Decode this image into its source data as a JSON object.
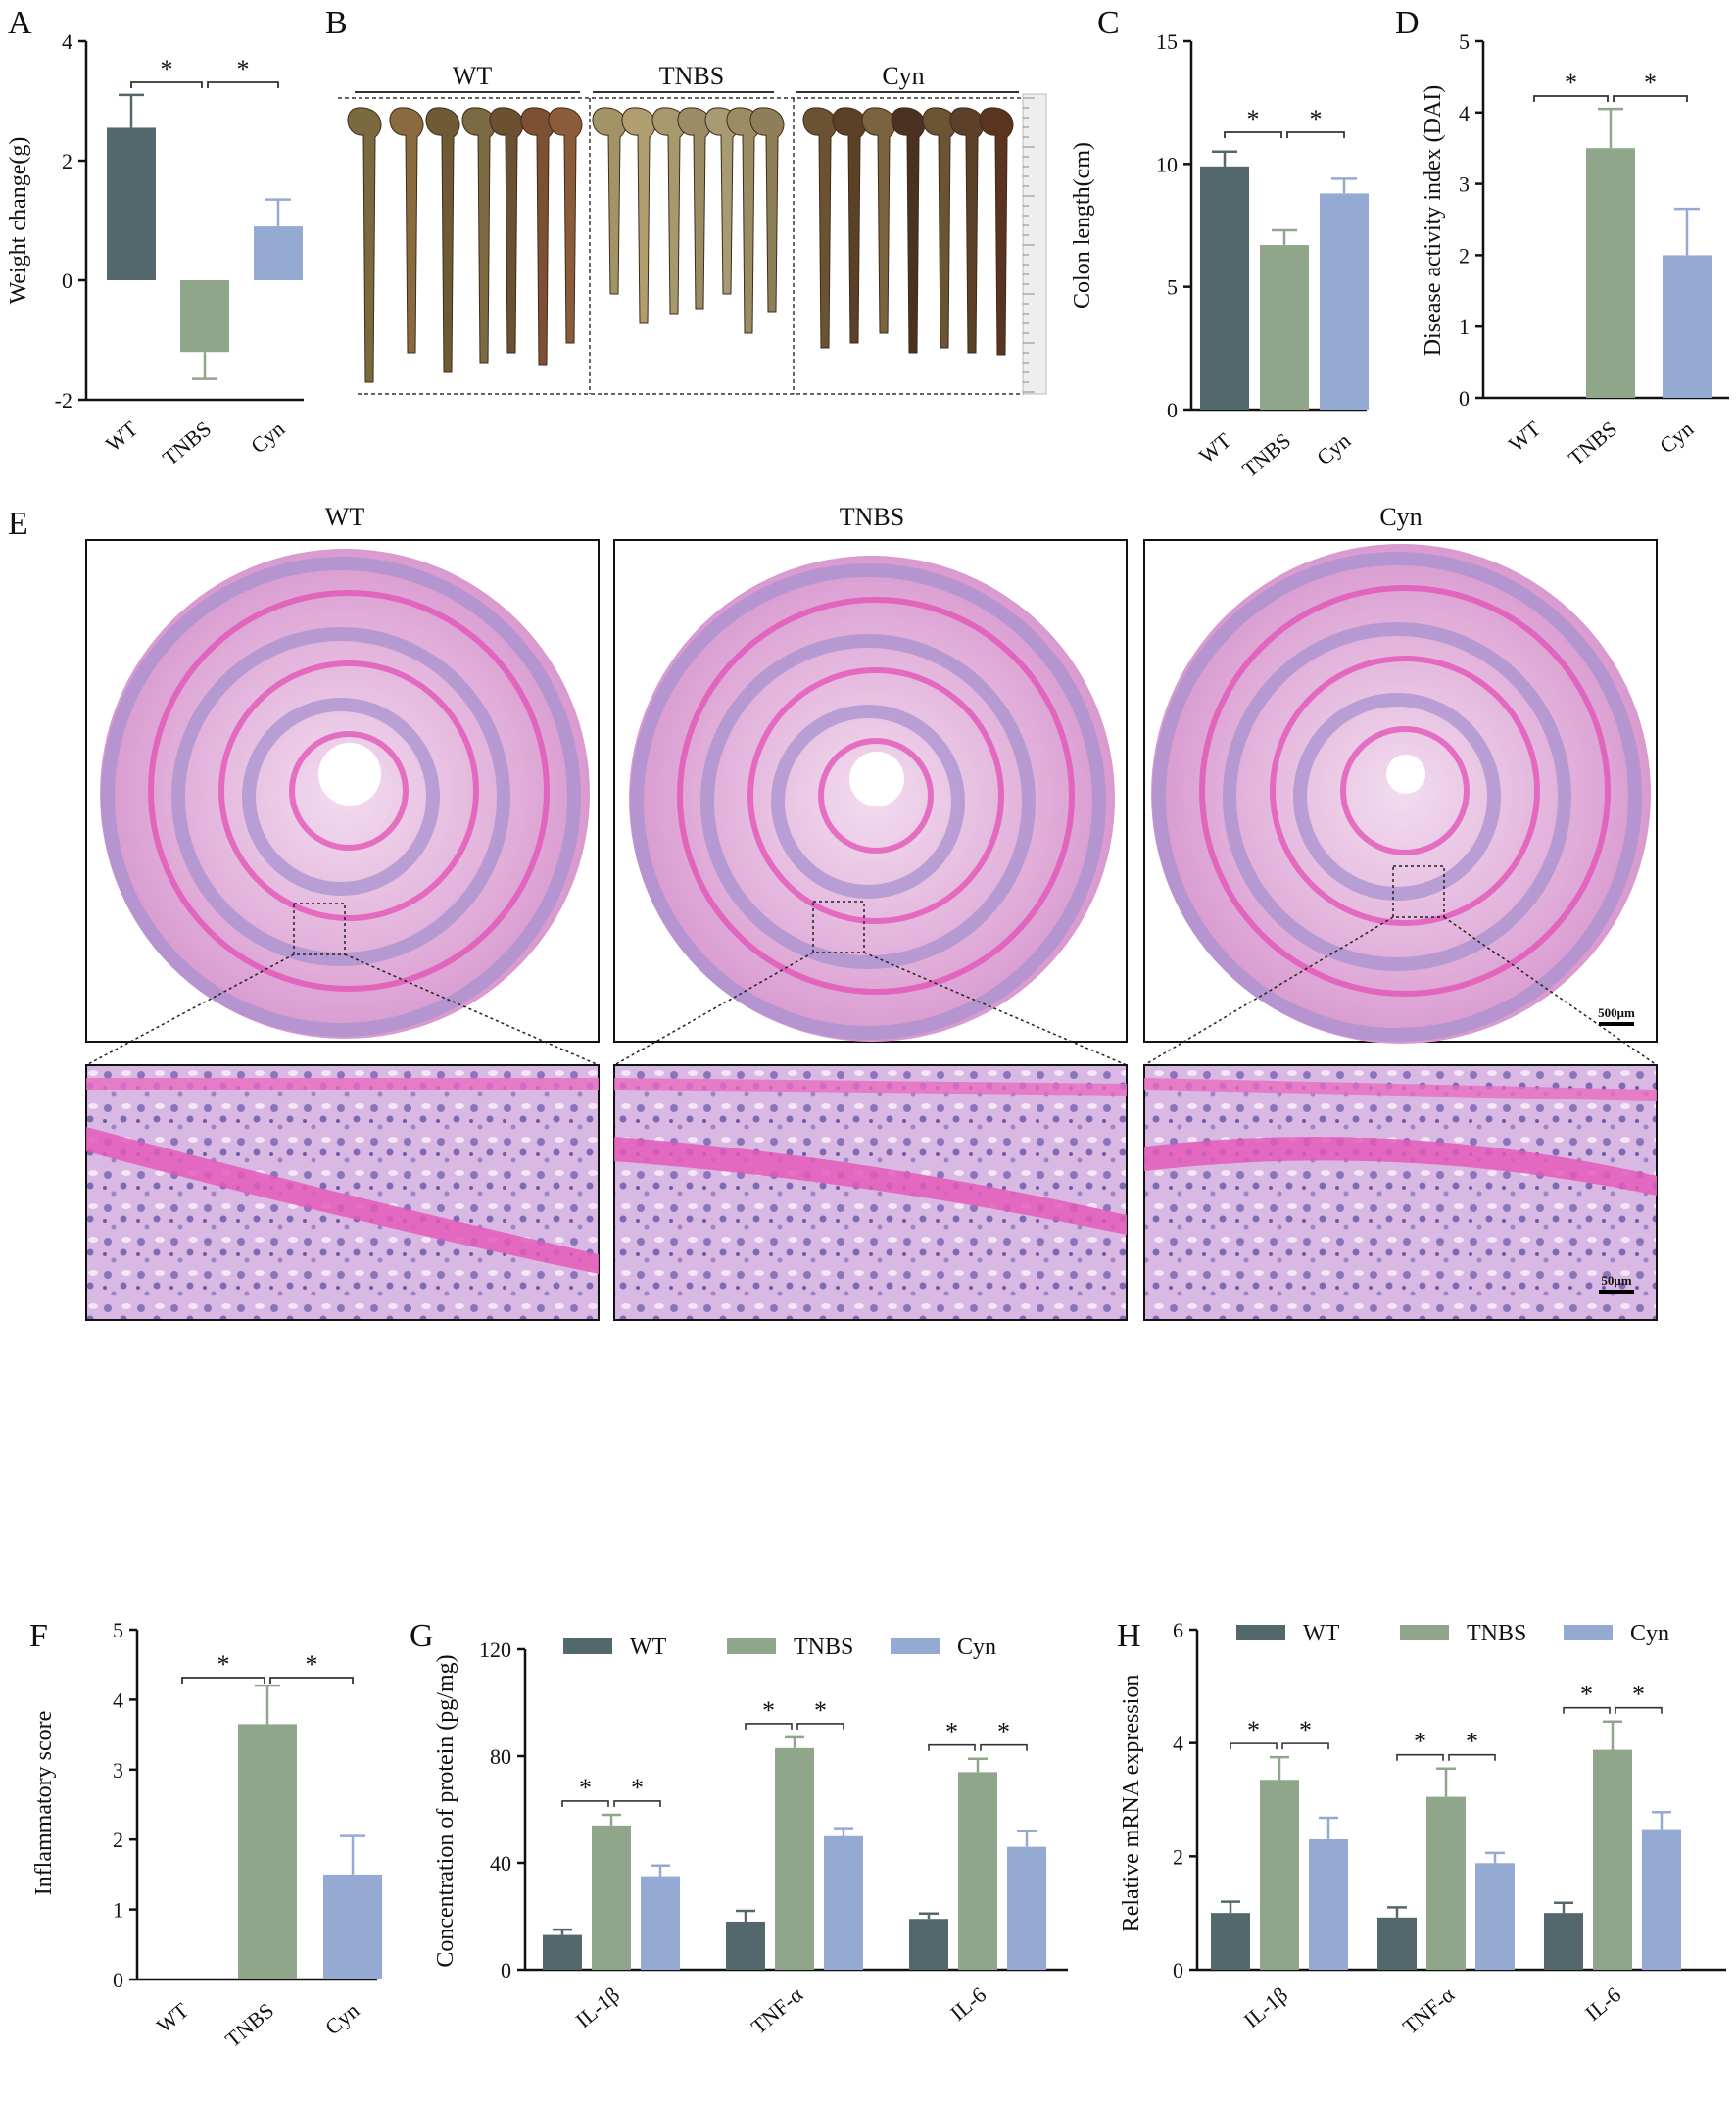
{
  "colors": {
    "WT": "#52686c",
    "TNBS": "#8fa68a",
    "Cyn": "#94aad2",
    "axis": "#111111",
    "he_pink": "#e6a8d8",
    "he_purple": "#9c8fc7"
  },
  "panel_labels": [
    "A",
    "B",
    "C",
    "D",
    "E",
    "F",
    "G",
    "H"
  ],
  "significance_marker": "*",
  "photo_B": {
    "group_labels": [
      "WT",
      "TNBS",
      "Cyn"
    ]
  },
  "histology_E": {
    "group_titles": [
      "WT",
      "TNBS",
      "Cyn"
    ],
    "scale_bar_overview": "500μm",
    "scale_bar_zoom": "50μm"
  },
  "chart_data": [
    {
      "panel": "A",
      "type": "bar",
      "title": "",
      "xlabel": "",
      "ylabel": "Weight change(g)",
      "categories": [
        "WT",
        "TNBS",
        "Cyn"
      ],
      "values": [
        2.55,
        -1.2,
        0.9
      ],
      "errors": [
        0.55,
        0.45,
        0.45
      ],
      "ylim": [
        -2,
        4
      ],
      "yticks": [
        -2,
        0,
        2,
        4
      ],
      "significance": [
        [
          "WT",
          "TNBS",
          "*"
        ],
        [
          "TNBS",
          "Cyn",
          "*"
        ]
      ]
    },
    {
      "panel": "C",
      "type": "bar",
      "title": "",
      "xlabel": "",
      "ylabel": "Colon length(cm)",
      "categories": [
        "WT",
        "TNBS",
        "Cyn"
      ],
      "values": [
        9.9,
        6.7,
        8.8
      ],
      "errors": [
        0.6,
        0.6,
        0.6
      ],
      "ylim": [
        0,
        15
      ],
      "yticks": [
        0,
        5,
        10,
        15
      ],
      "significance": [
        [
          "WT",
          "TNBS",
          "*"
        ],
        [
          "TNBS",
          "Cyn",
          "*"
        ]
      ]
    },
    {
      "panel": "D",
      "type": "bar",
      "title": "",
      "xlabel": "",
      "ylabel": "Disease activity index (DAI)",
      "categories": [
        "WT",
        "TNBS",
        "Cyn"
      ],
      "values": [
        0,
        3.5,
        2.0
      ],
      "errors": [
        0,
        0.55,
        0.65
      ],
      "ylim": [
        0,
        5
      ],
      "yticks": [
        0,
        1,
        2,
        3,
        4,
        5
      ],
      "significance": [
        [
          "WT",
          "TNBS",
          "*"
        ],
        [
          "TNBS",
          "Cyn",
          "*"
        ]
      ]
    },
    {
      "panel": "F",
      "type": "bar",
      "title": "",
      "xlabel": "",
      "ylabel": "Inflammatory score",
      "categories": [
        "WT",
        "TNBS",
        "Cyn"
      ],
      "values": [
        0,
        3.65,
        1.5
      ],
      "errors": [
        0,
        0.55,
        0.55
      ],
      "ylim": [
        0,
        5
      ],
      "yticks": [
        0,
        1,
        2,
        3,
        4,
        5
      ],
      "significance": [
        [
          "WT",
          "TNBS",
          "*"
        ],
        [
          "TNBS",
          "Cyn",
          "*"
        ]
      ]
    },
    {
      "panel": "G",
      "type": "bar",
      "title": "",
      "xlabel": "",
      "ylabel": "Concentration of protein (pg/mg)",
      "categories": [
        "IL-1β",
        "TNF-α",
        "IL-6"
      ],
      "series": [
        {
          "name": "WT",
          "values": [
            13,
            18,
            19
          ],
          "errors": [
            2,
            4,
            2
          ]
        },
        {
          "name": "TNBS",
          "values": [
            54,
            83,
            74
          ],
          "errors": [
            4,
            4,
            5
          ]
        },
        {
          "name": "Cyn",
          "values": [
            35,
            50,
            46
          ],
          "errors": [
            4,
            3,
            6
          ]
        }
      ],
      "ylim": [
        0,
        120
      ],
      "yticks": [
        0,
        40,
        80,
        120
      ],
      "legend": "top",
      "significance": "* between WT–TNBS and TNBS–Cyn for each cytokine"
    },
    {
      "panel": "H",
      "type": "bar",
      "title": "",
      "xlabel": "",
      "ylabel": "Relative mRNA expression",
      "categories": [
        "IL-1β",
        "TNF-α",
        "IL-6"
      ],
      "series": [
        {
          "name": "WT",
          "values": [
            1.0,
            0.92,
            1.0
          ],
          "errors": [
            0.2,
            0.18,
            0.18
          ]
        },
        {
          "name": "TNBS",
          "values": [
            3.35,
            3.05,
            3.88
          ],
          "errors": [
            0.4,
            0.5,
            0.5
          ]
        },
        {
          "name": "Cyn",
          "values": [
            2.3,
            1.88,
            2.48
          ],
          "errors": [
            0.38,
            0.18,
            0.3
          ]
        }
      ],
      "ylim": [
        0,
        6
      ],
      "yticks": [
        0,
        2,
        4,
        6
      ],
      "legend": "top",
      "significance": "* between WT–TNBS and TNBS–Cyn for each gene"
    }
  ]
}
